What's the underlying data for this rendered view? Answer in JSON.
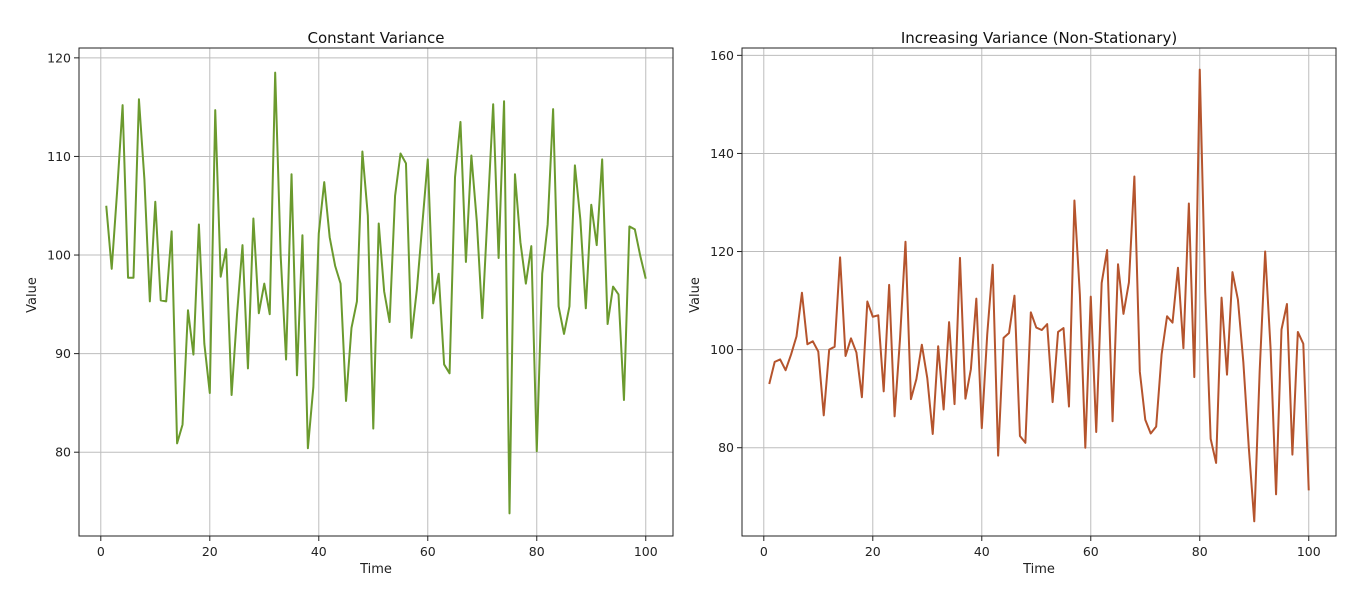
{
  "chart_data": [
    {
      "type": "line",
      "title": "Constant Variance",
      "xlabel": "Time",
      "ylabel": "Value",
      "xlim": [
        -4,
        105
      ],
      "ylim": [
        71.5,
        121
      ],
      "xticks": [
        0,
        20,
        40,
        60,
        80,
        100
      ],
      "yticks": [
        80,
        90,
        100,
        110,
        120
      ],
      "grid": true,
      "color": "#6b9a2e",
      "x": [
        1,
        2,
        3,
        4,
        5,
        6,
        7,
        8,
        9,
        10,
        11,
        12,
        13,
        14,
        15,
        16,
        17,
        18,
        19,
        20,
        21,
        22,
        23,
        24,
        25,
        26,
        27,
        28,
        29,
        30,
        31,
        32,
        33,
        34,
        35,
        36,
        37,
        38,
        39,
        40,
        41,
        42,
        43,
        44,
        45,
        46,
        47,
        48,
        49,
        50,
        51,
        52,
        53,
        54,
        55,
        56,
        57,
        58,
        59,
        60,
        61,
        62,
        63,
        64,
        65,
        66,
        67,
        68,
        69,
        70,
        71,
        72,
        73,
        74,
        75,
        76,
        77,
        78,
        79,
        80,
        81,
        82,
        83,
        84,
        85,
        86,
        87,
        88,
        89,
        90,
        91,
        92,
        93,
        94,
        95,
        96,
        97,
        98,
        99,
        100
      ],
      "y": [
        105.0,
        98.6,
        106.5,
        115.2,
        97.7,
        97.7,
        115.8,
        107.7,
        95.3,
        105.4,
        95.4,
        95.3,
        102.4,
        80.9,
        82.8,
        94.4,
        89.9,
        103.1,
        91.0,
        86.0,
        114.7,
        97.8,
        100.6,
        85.8,
        94.0,
        101.0,
        88.5,
        103.7,
        94.1,
        97.1,
        94.0,
        118.5,
        100.0,
        89.4,
        108.2,
        87.8,
        102.0,
        80.4,
        86.6,
        102.2,
        107.4,
        101.8,
        98.9,
        97.1,
        85.2,
        92.6,
        95.3,
        110.5,
        104.0,
        82.4,
        103.2,
        96.3,
        93.2,
        106.0,
        110.3,
        109.3,
        91.6,
        96.5,
        103.1,
        109.7,
        95.1,
        98.1,
        88.9,
        88.0,
        107.9,
        113.5,
        99.3,
        110.1,
        103.4,
        93.6,
        104.5,
        115.3,
        99.7,
        115.6,
        73.8,
        108.2,
        101.3,
        97.1,
        100.9,
        80.1,
        98.1,
        103.1,
        114.8,
        94.8,
        92.0,
        94.8,
        109.1,
        103.6,
        94.6,
        105.1,
        101.0,
        109.7,
        93.0,
        96.8,
        96.0,
        85.3,
        102.9,
        102.6,
        99.9,
        97.6
      ]
    },
    {
      "type": "line",
      "title": "Increasing Variance (Non-Stationary)",
      "xlabel": "Time",
      "ylabel": "Value",
      "xlim": [
        -4,
        105
      ],
      "ylim": [
        62,
        161.5
      ],
      "xticks": [
        0,
        20,
        40,
        60,
        80,
        100
      ],
      "yticks": [
        80,
        100,
        120,
        140,
        160
      ],
      "grid": true,
      "color": "#b5542d",
      "x": [
        1,
        2,
        3,
        4,
        5,
        6,
        7,
        8,
        9,
        10,
        11,
        12,
        13,
        14,
        15,
        16,
        17,
        18,
        19,
        20,
        21,
        22,
        23,
        24,
        25,
        26,
        27,
        28,
        29,
        30,
        31,
        32,
        33,
        34,
        35,
        36,
        37,
        38,
        39,
        40,
        41,
        42,
        43,
        44,
        45,
        46,
        47,
        48,
        49,
        50,
        51,
        52,
        53,
        54,
        55,
        56,
        57,
        58,
        59,
        60,
        61,
        62,
        63,
        64,
        65,
        66,
        67,
        68,
        69,
        70,
        71,
        72,
        73,
        74,
        75,
        76,
        77,
        78,
        79,
        80,
        81,
        82,
        83,
        84,
        85,
        86,
        87,
        88,
        89,
        90,
        91,
        92,
        93,
        94,
        95,
        96,
        97,
        98,
        99,
        100
      ],
      "y": [
        93.0,
        97.5,
        98.0,
        95.8,
        99.0,
        102.7,
        111.6,
        101.1,
        101.7,
        99.6,
        86.6,
        100.0,
        100.6,
        118.8,
        98.7,
        102.3,
        99.4,
        90.3,
        109.8,
        106.7,
        107.0,
        91.5,
        113.2,
        86.4,
        102.3,
        122.0,
        89.9,
        94.0,
        101.0,
        94.2,
        82.8,
        100.7,
        87.8,
        105.6,
        88.9,
        118.7,
        90.0,
        96.0,
        110.4,
        84.0,
        103.1,
        117.3,
        78.4,
        102.4,
        103.4,
        111.0,
        82.4,
        81.0,
        107.6,
        104.5,
        104.0,
        105.2,
        89.3,
        103.6,
        104.4,
        88.4,
        130.4,
        111.2,
        80.0,
        110.8,
        83.2,
        113.6,
        120.3,
        85.4,
        117.4,
        107.3,
        113.7,
        135.3,
        95.5,
        85.7,
        82.9,
        84.3,
        99.0,
        106.8,
        105.5,
        116.7,
        100.3,
        129.8,
        94.4,
        157.1,
        111.8,
        81.8,
        76.9,
        110.6,
        94.9,
        115.8,
        110.2,
        97.4,
        80.0,
        65.0,
        95.8,
        120.0,
        100.1,
        70.5,
        104.1,
        109.3,
        78.6,
        103.6,
        101.2,
        71.3
      ]
    }
  ]
}
